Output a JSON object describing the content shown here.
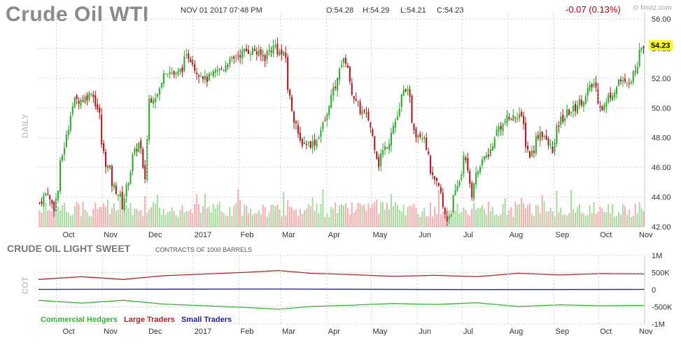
{
  "header": {
    "title": "Crude Oil WTI",
    "datetime": "NOV 01 2017 07:48 PM",
    "open": "O:54.28",
    "high": "H:54.29",
    "low": "L:54.21",
    "close": "C:54.23",
    "change": "-0.07 (0.13%)",
    "brand": "finviz.com"
  },
  "price_panel": {
    "period_label": "DAILY",
    "last_price_label": "54.23"
  },
  "cot_panel": {
    "title": "CRUDE OIL LIGHT SWEET",
    "subtitle": "CONTRACTS OF 1000 BARRELS",
    "axis_label": "COT",
    "legend": [
      {
        "label": "Commercial Hedgers",
        "color": "#2fb52f"
      },
      {
        "label": "Large Traders",
        "color": "#b22222"
      },
      {
        "label": "Small Traders",
        "color": "#1f1fa8"
      }
    ]
  },
  "colors": {
    "up": "#2eaa2e",
    "down": "#b01818",
    "vol_up": "#a8dca0",
    "vol_down": "#f4b0b0",
    "grid": "#d0d0d0",
    "last_price_bg": "#ffff00"
  },
  "chart_data": [
    {
      "type": "candlestick",
      "title": "Crude Oil WTI",
      "ylabel": "DAILY",
      "ylim": [
        42,
        56
      ],
      "y_ticks": [
        "42.00",
        "44.00",
        "46.00",
        "48.00",
        "50.00",
        "52.00",
        "54.00",
        "56.00"
      ],
      "x_ticks": [
        "Oct",
        "Nov",
        "Dec",
        "2017",
        "Feb",
        "Mar",
        "Apr",
        "May",
        "Jun",
        "Jul",
        "Aug",
        "Sep",
        "Oct",
        "Nov"
      ],
      "x_range": [
        "2016-09-19",
        "2017-11-01"
      ],
      "last_close": 54.23,
      "price_path": [
        {
          "x": "2016-09-19",
          "y": 43.6
        },
        {
          "x": "2016-09-23",
          "y": 44.4
        },
        {
          "x": "2016-09-28",
          "y": 43.3
        },
        {
          "x": "2016-10-03",
          "y": 46.2
        },
        {
          "x": "2016-10-07",
          "y": 48.7
        },
        {
          "x": "2016-10-12",
          "y": 50.5
        },
        {
          "x": "2016-10-18",
          "y": 50.6
        },
        {
          "x": "2016-10-24",
          "y": 51.2
        },
        {
          "x": "2016-10-28",
          "y": 49.5
        },
        {
          "x": "2016-11-02",
          "y": 46.3
        },
        {
          "x": "2016-11-07",
          "y": 44.9
        },
        {
          "x": "2016-11-14",
          "y": 43.4
        },
        {
          "x": "2016-11-18",
          "y": 45.8
        },
        {
          "x": "2016-11-24",
          "y": 47.6
        },
        {
          "x": "2016-11-29",
          "y": 45.3
        },
        {
          "x": "2016-12-01",
          "y": 50.6
        },
        {
          "x": "2016-12-07",
          "y": 50.9
        },
        {
          "x": "2016-12-12",
          "y": 52.6
        },
        {
          "x": "2016-12-20",
          "y": 52.2
        },
        {
          "x": "2016-12-28",
          "y": 53.5
        },
        {
          "x": "2017-01-03",
          "y": 52.5
        },
        {
          "x": "2017-01-09",
          "y": 51.9
        },
        {
          "x": "2017-01-16",
          "y": 52.4
        },
        {
          "x": "2017-01-25",
          "y": 53.1
        },
        {
          "x": "2017-02-03",
          "y": 53.8
        },
        {
          "x": "2017-02-10",
          "y": 53.9
        },
        {
          "x": "2017-02-17",
          "y": 53.4
        },
        {
          "x": "2017-02-24",
          "y": 54.2
        },
        {
          "x": "2017-03-03",
          "y": 53.4
        },
        {
          "x": "2017-03-09",
          "y": 49.3
        },
        {
          "x": "2017-03-14",
          "y": 47.7
        },
        {
          "x": "2017-03-22",
          "y": 47.6
        },
        {
          "x": "2017-03-27",
          "y": 48.2
        },
        {
          "x": "2017-04-03",
          "y": 50.4
        },
        {
          "x": "2017-04-10",
          "y": 52.9
        },
        {
          "x": "2017-04-13",
          "y": 53.2
        },
        {
          "x": "2017-04-20",
          "y": 50.3
        },
        {
          "x": "2017-04-26",
          "y": 49.6
        },
        {
          "x": "2017-05-01",
          "y": 48.7
        },
        {
          "x": "2017-05-05",
          "y": 46.2
        },
        {
          "x": "2017-05-10",
          "y": 47.3
        },
        {
          "x": "2017-05-16",
          "y": 48.8
        },
        {
          "x": "2017-05-24",
          "y": 51.4
        },
        {
          "x": "2017-05-31",
          "y": 48.3
        },
        {
          "x": "2017-06-06",
          "y": 48.2
        },
        {
          "x": "2017-06-09",
          "y": 45.8
        },
        {
          "x": "2017-06-15",
          "y": 44.6
        },
        {
          "x": "2017-06-21",
          "y": 42.5
        },
        {
          "x": "2017-06-27",
          "y": 44.2
        },
        {
          "x": "2017-07-03",
          "y": 47.0
        },
        {
          "x": "2017-07-07",
          "y": 44.2
        },
        {
          "x": "2017-07-13",
          "y": 46.1
        },
        {
          "x": "2017-07-20",
          "y": 47.1
        },
        {
          "x": "2017-07-26",
          "y": 48.7
        },
        {
          "x": "2017-08-01",
          "y": 49.2
        },
        {
          "x": "2017-08-09",
          "y": 49.6
        },
        {
          "x": "2017-08-16",
          "y": 46.8
        },
        {
          "x": "2017-08-23",
          "y": 48.4
        },
        {
          "x": "2017-08-31",
          "y": 47.2
        },
        {
          "x": "2017-09-06",
          "y": 49.2
        },
        {
          "x": "2017-09-14",
          "y": 49.9
        },
        {
          "x": "2017-09-22",
          "y": 50.7
        },
        {
          "x": "2017-09-28",
          "y": 51.6
        },
        {
          "x": "2017-10-04",
          "y": 50.0
        },
        {
          "x": "2017-10-10",
          "y": 50.9
        },
        {
          "x": "2017-10-16",
          "y": 51.9
        },
        {
          "x": "2017-10-20",
          "y": 51.5
        },
        {
          "x": "2017-10-25",
          "y": 52.2
        },
        {
          "x": "2017-10-30",
          "y": 54.2
        },
        {
          "x": "2017-11-01",
          "y": 54.23
        }
      ]
    },
    {
      "type": "line",
      "title": "CRUDE OIL LIGHT SWEET",
      "subtitle": "CONTRACTS OF 1000 BARRELS",
      "ylabel": "COT",
      "ylim": [
        -1000000,
        1000000
      ],
      "y_ticks": [
        "1M",
        "500K",
        "0",
        "-500K",
        "-1M"
      ],
      "x_ticks": [
        "Oct",
        "Nov",
        "Dec",
        "2017",
        "Feb",
        "Mar",
        "Apr",
        "May",
        "Jun",
        "Jul",
        "Aug",
        "Sep",
        "Oct",
        "Nov"
      ],
      "series": [
        {
          "name": "Large Traders",
          "points": [
            {
              "x": "2016-09-19",
              "y": 300000
            },
            {
              "x": "2016-10-18",
              "y": 380000
            },
            {
              "x": "2016-11-15",
              "y": 300000
            },
            {
              "x": "2016-12-13",
              "y": 410000
            },
            {
              "x": "2017-01-10",
              "y": 460000
            },
            {
              "x": "2017-02-07",
              "y": 510000
            },
            {
              "x": "2017-02-28",
              "y": 560000
            },
            {
              "x": "2017-03-21",
              "y": 480000
            },
            {
              "x": "2017-04-18",
              "y": 440000
            },
            {
              "x": "2017-05-16",
              "y": 390000
            },
            {
              "x": "2017-06-13",
              "y": 420000
            },
            {
              "x": "2017-07-11",
              "y": 380000
            },
            {
              "x": "2017-08-08",
              "y": 480000
            },
            {
              "x": "2017-09-05",
              "y": 430000
            },
            {
              "x": "2017-10-03",
              "y": 470000
            },
            {
              "x": "2017-11-01",
              "y": 460000
            }
          ]
        },
        {
          "name": "Small Traders",
          "points": [
            {
              "x": "2016-09-19",
              "y": 10000
            },
            {
              "x": "2017-02-28",
              "y": 20000
            },
            {
              "x": "2017-07-11",
              "y": 5000
            },
            {
              "x": "2017-11-01",
              "y": 10000
            }
          ]
        },
        {
          "name": "Commercial Hedgers",
          "points": [
            {
              "x": "2016-09-19",
              "y": -310000
            },
            {
              "x": "2016-10-18",
              "y": -390000
            },
            {
              "x": "2016-11-15",
              "y": -310000
            },
            {
              "x": "2016-12-13",
              "y": -420000
            },
            {
              "x": "2017-01-10",
              "y": -470000
            },
            {
              "x": "2017-02-07",
              "y": -520000
            },
            {
              "x": "2017-02-28",
              "y": -570000
            },
            {
              "x": "2017-03-21",
              "y": -490000
            },
            {
              "x": "2017-04-18",
              "y": -450000
            },
            {
              "x": "2017-05-16",
              "y": -400000
            },
            {
              "x": "2017-06-13",
              "y": -430000
            },
            {
              "x": "2017-07-11",
              "y": -380000
            },
            {
              "x": "2017-08-08",
              "y": -490000
            },
            {
              "x": "2017-09-05",
              "y": -440000
            },
            {
              "x": "2017-10-03",
              "y": -470000
            },
            {
              "x": "2017-11-01",
              "y": -460000
            }
          ]
        }
      ]
    }
  ]
}
